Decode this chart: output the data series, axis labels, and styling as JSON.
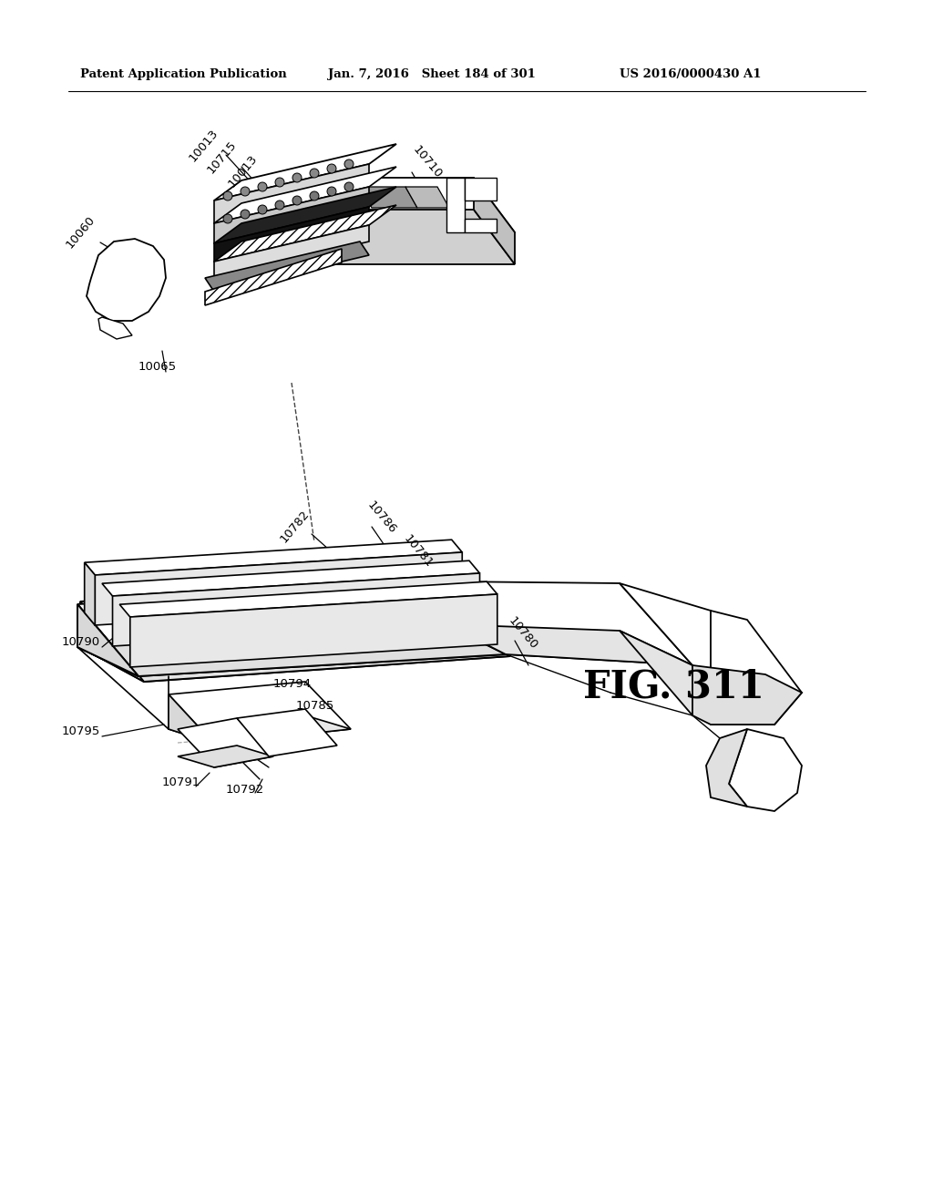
{
  "background_color": "#ffffff",
  "header_left": "Patent Application Publication",
  "header_center": "Jan. 7, 2016   Sheet 184 of 301",
  "header_right": "US 2016/0000430 A1",
  "fig_label": "FIG. 311",
  "line_color": "#000000"
}
